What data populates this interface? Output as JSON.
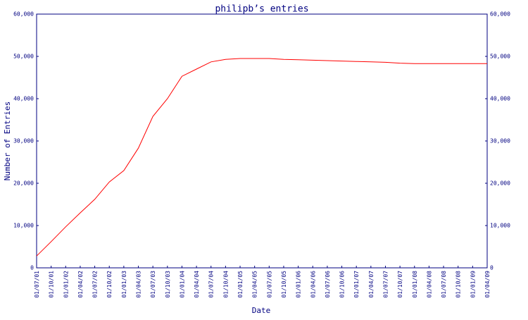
{
  "chart_data": {
    "type": "line",
    "title": "philipb’s entries",
    "x_label": "Date",
    "y_label": "Number of Entries",
    "categories": [
      "01/07/01",
      "01/10/01",
      "01/01/02",
      "01/04/02",
      "01/07/02",
      "01/10/02",
      "01/01/03",
      "01/04/03",
      "01/07/03",
      "01/10/03",
      "01/01/04",
      "01/04/04",
      "01/07/04",
      "01/10/04",
      "01/01/05",
      "01/04/05",
      "01/07/05",
      "01/10/05",
      "01/01/06",
      "01/04/06",
      "01/07/06",
      "01/10/06",
      "01/01/07",
      "01/04/07",
      "01/07/07",
      "01/10/07",
      "01/01/08",
      "01/04/08",
      "01/07/08",
      "01/10/08",
      "01/01/09",
      "01/04/09"
    ],
    "series": [
      {
        "name": "entries",
        "color": "#ff0000",
        "values": [
          2800,
          6200,
          9700,
          13000,
          16200,
          20300,
          23000,
          28300,
          35800,
          40000,
          45300,
          47000,
          48700,
          49300,
          49500,
          49500,
          49500,
          49300,
          49200,
          49100,
          49000,
          48900,
          48800,
          48700,
          48600,
          48400,
          48300,
          48300,
          48300,
          48300,
          48300,
          48300
        ]
      }
    ],
    "ylim": [
      0,
      60000
    ],
    "yticks": [
      0,
      {
        "value": 10000,
        "label": "10,000"
      },
      {
        "value": 20000,
        "label": "20,000"
      },
      {
        "value": 30000,
        "label": "30,000"
      },
      {
        "value": 40000,
        "label": "40,000"
      },
      {
        "value": 50000,
        "label": "50,000"
      },
      {
        "value": 60000,
        "label": "60,000"
      }
    ],
    "grid": false
  }
}
